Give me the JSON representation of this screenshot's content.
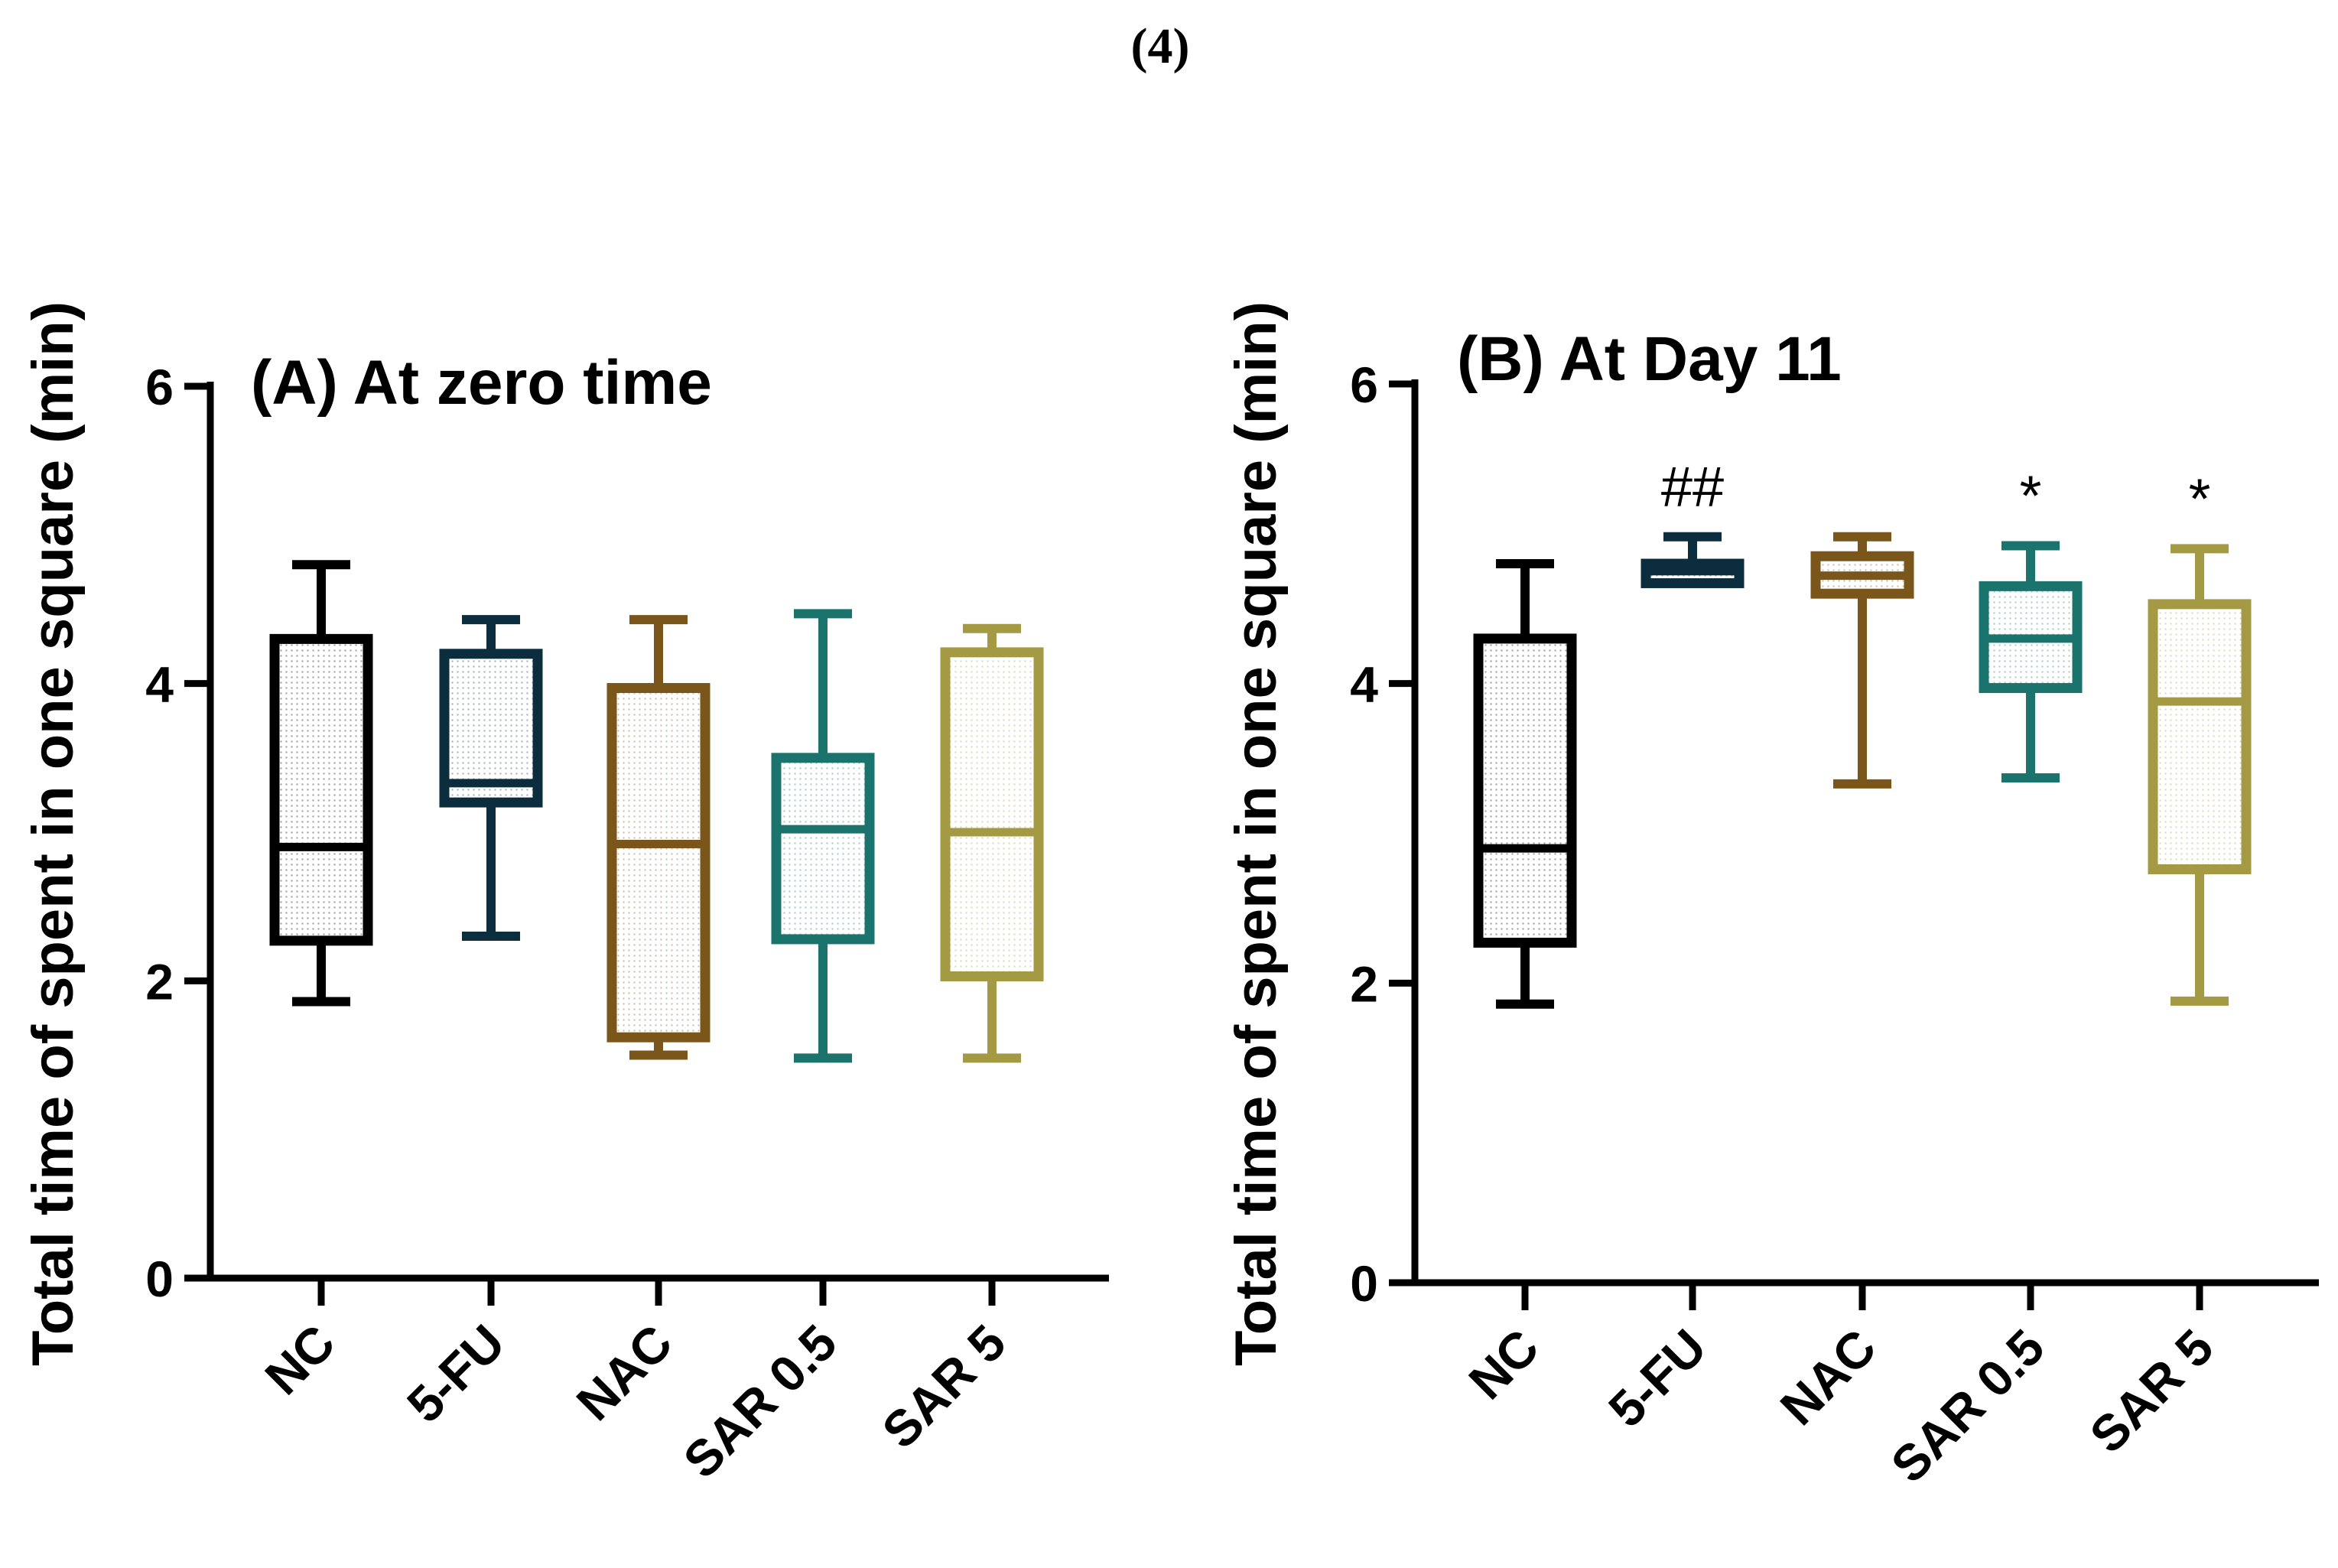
{
  "figure_label": "(4)",
  "chart_data": [
    {
      "type": "box",
      "title": "(A) At zero time",
      "xlabel": "",
      "ylabel": "Total time of spent in one square (min)",
      "ylim": [
        0,
        6
      ],
      "yticks": [
        0,
        2,
        4,
        6
      ],
      "categories": [
        "NC",
        "5-FU",
        "NAC",
        "SAR 0.5",
        "SAR 5"
      ],
      "colors": [
        "#000000",
        "#0c2d3d",
        "#7b561b",
        "#1a746d",
        "#a49a44"
      ],
      "boxes": [
        {
          "name": "NC",
          "min": 1.86,
          "q1": 2.27,
          "median": 2.9,
          "q3": 4.3,
          "max": 4.8
        },
        {
          "name": "5-FU",
          "min": 2.3,
          "q1": 3.2,
          "median": 3.33,
          "q3": 4.2,
          "max": 4.43
        },
        {
          "name": "NAC",
          "min": 1.5,
          "q1": 1.62,
          "median": 2.92,
          "q3": 3.97,
          "max": 4.43
        },
        {
          "name": "SAR 0.5",
          "min": 1.48,
          "q1": 2.28,
          "median": 3.02,
          "q3": 3.5,
          "max": 4.47
        },
        {
          "name": "SAR 5",
          "min": 1.48,
          "q1": 2.03,
          "median": 3.0,
          "q3": 4.21,
          "max": 4.37
        }
      ],
      "annotations": [
        "",
        "",
        "",
        "",
        ""
      ]
    },
    {
      "type": "box",
      "title": "(B) At Day 11",
      "xlabel": "",
      "ylabel": "Total time of spent in one square (min)",
      "ylim": [
        0,
        6
      ],
      "yticks": [
        0,
        2,
        4,
        6
      ],
      "categories": [
        "NC",
        "5-FU",
        "NAC",
        "SAR 0.5",
        "SAR 5"
      ],
      "colors": [
        "#000000",
        "#0c2d3d",
        "#7b561b",
        "#1a746d",
        "#a49a44"
      ],
      "boxes": [
        {
          "name": "NC",
          "min": 1.86,
          "q1": 2.27,
          "median": 2.9,
          "q3": 4.3,
          "max": 4.8
        },
        {
          "name": "5-FU",
          "min": 4.67,
          "q1": 4.67,
          "median": 4.75,
          "q3": 4.8,
          "max": 4.98
        },
        {
          "name": "NAC",
          "min": 3.33,
          "q1": 4.6,
          "median": 4.72,
          "q3": 4.85,
          "max": 4.98
        },
        {
          "name": "SAR 0.5",
          "min": 3.37,
          "q1": 3.97,
          "median": 4.3,
          "q3": 4.65,
          "max": 4.92
        },
        {
          "name": "SAR 5",
          "min": 1.88,
          "q1": 2.76,
          "median": 3.88,
          "q3": 4.53,
          "max": 4.9
        }
      ],
      "annotations": [
        "",
        "##",
        "",
        "*",
        "*"
      ]
    }
  ]
}
